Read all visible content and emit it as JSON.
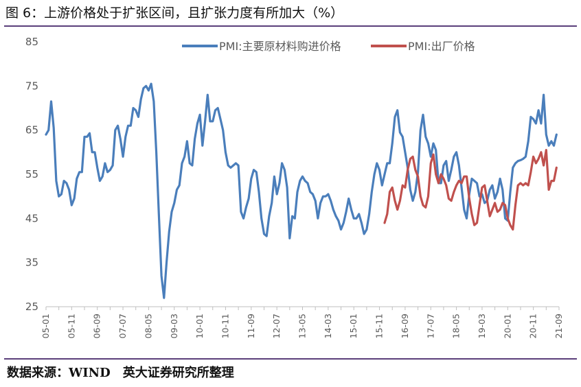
{
  "header": {
    "title": "图 6：上游价格处于扩张区间，且扩张力度有所加大（%）"
  },
  "footer": {
    "source": "数据来源：WIND　英大证券研究所整理"
  },
  "chart_data": {
    "type": "line",
    "title": "",
    "xlabel": "",
    "ylabel": "",
    "ylim": [
      25,
      85
    ],
    "yticks": [
      25,
      35,
      45,
      55,
      65,
      75,
      85
    ],
    "xticks": [
      "05-01",
      "05-11",
      "06-09",
      "07-07",
      "08-05",
      "09-03",
      "10-01",
      "10-11",
      "11-09",
      "12-07",
      "13-05",
      "14-03",
      "15-01",
      "15-11",
      "16-09",
      "17-07",
      "18-05",
      "19-03",
      "20-01",
      "20-11",
      "21-09"
    ],
    "grid": false,
    "legend": "top-center",
    "x_start": "2005-01",
    "x_end": "2021-09",
    "series": [
      {
        "name": "PMI:主要原材料购进价格",
        "color": "#4a7ebb",
        "start": "2005-01",
        "values": [
          64,
          65,
          71.5,
          65.5,
          53.5,
          50,
          50.5,
          53.5,
          53,
          51.5,
          48,
          49.5,
          54,
          55.5,
          55.5,
          63.5,
          63.5,
          64.3,
          60,
          60,
          56.5,
          53.5,
          54.5,
          57.5,
          55.5,
          56,
          57,
          65,
          66,
          63,
          59,
          63.5,
          66,
          66,
          70,
          69.5,
          68,
          72,
          74.5,
          75,
          74,
          75.5,
          71.5,
          60,
          46,
          32,
          27,
          35,
          42,
          46.5,
          48.5,
          51.5,
          52.5,
          57.5,
          59,
          62.5,
          57.5,
          57,
          63,
          66.5,
          68.5,
          61.5,
          67,
          73,
          67,
          67,
          69.5,
          70,
          67.5,
          65,
          60,
          57,
          56.5,
          57,
          57.5,
          57,
          46.5,
          45,
          47.5,
          49.5,
          54,
          56,
          55.5,
          51,
          45,
          41.5,
          41,
          45.5,
          48.5,
          54.5,
          50.5,
          53,
          57.5,
          56,
          52,
          40.5,
          45.5,
          45,
          51,
          53.5,
          54.5,
          53.5,
          53,
          51,
          50.5,
          49,
          45,
          48.5,
          50,
          50,
          50.5,
          49,
          47,
          45.5,
          44.5,
          42.5,
          44,
          46.5,
          49.5,
          47,
          45,
          45,
          46,
          44,
          41.5,
          42.5,
          46,
          51,
          55,
          57.5,
          56,
          52.5,
          55,
          57.5,
          57.5,
          62,
          68,
          69.5,
          64.5,
          63.5,
          60,
          56.5,
          51.5,
          49,
          51,
          55.5,
          65,
          68.5,
          63.5,
          62,
          59,
          62,
          60.5,
          53,
          53,
          57,
          58,
          53.5,
          56,
          59,
          60,
          57,
          52,
          47,
          45,
          50.5,
          54,
          53.5,
          53,
          50,
          50.5,
          48.5,
          49,
          51.5,
          52.5,
          49.5,
          51,
          54,
          51.5,
          45,
          44.5,
          51,
          56.5,
          57.5,
          58,
          58.2,
          58.5,
          59,
          62.5,
          68,
          67.5,
          66.5,
          69.5,
          66.5,
          73,
          64,
          61.5,
          62.5,
          61.5,
          64
        ]
      },
      {
        "name": "PMI:出厂价格",
        "color": "#c0504d",
        "start": "2016-01",
        "values": [
          44,
          46,
          51,
          52,
          49,
          47,
          49,
          52.5,
          52,
          56,
          58.5,
          59,
          56,
          54.5,
          50,
          48,
          47.5,
          50,
          57.5,
          59.5,
          55,
          53,
          55,
          54,
          52.5,
          49.5,
          49,
          51,
          52.5,
          53.5,
          53,
          54.5,
          54.5,
          49.5,
          46,
          43.5,
          44,
          48,
          52,
          52.5,
          49,
          45.5,
          47,
          48.5,
          46.5,
          47,
          48.5,
          48,
          45,
          43.5,
          42.5,
          48,
          52.5,
          53,
          52.5,
          53,
          52.5,
          55.5,
          59,
          57.5,
          58.5,
          60,
          57,
          60.5,
          51.5,
          53.5,
          53.5,
          56.5
        ]
      }
    ]
  }
}
